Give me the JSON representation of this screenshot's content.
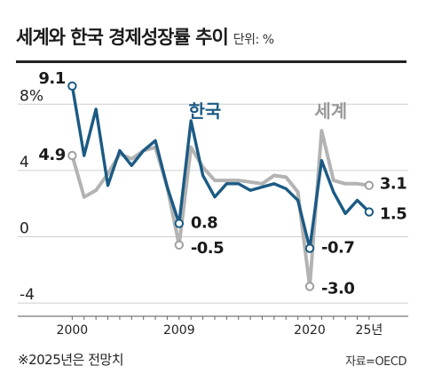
{
  "header": {
    "title": "세계와 한국 경제성장률 추이",
    "unit": "단위: %"
  },
  "footer": {
    "note": "※2025년은 전망치",
    "source": "자료=OECD"
  },
  "colors": {
    "korea": "#1b5a84",
    "world": "#b3b3b3",
    "world_marker": "#a0a0a0",
    "axis_text": "#222222"
  },
  "chart_data": {
    "type": "line",
    "title": "세계와 한국 경제성장률 추이",
    "ylabel": "단위: %",
    "xlabel": "",
    "ylim": [
      -4.8,
      10
    ],
    "xlim": [
      1999,
      2026.8
    ],
    "x": [
      2000,
      2001,
      2002,
      2003,
      2004,
      2005,
      2006,
      2007,
      2008,
      2009,
      2010,
      2011,
      2012,
      2013,
      2014,
      2015,
      2016,
      2017,
      2018,
      2019,
      2020,
      2021,
      2022,
      2023,
      2024,
      2025
    ],
    "x_tick_labels": [
      {
        "x": 2000,
        "label": "2000"
      },
      {
        "x": 2009,
        "label": "2009"
      },
      {
        "x": 2020,
        "label": "2020"
      },
      {
        "x": 2025,
        "label": "25년"
      }
    ],
    "y_ticks": [
      {
        "value": 8,
        "label": "8%"
      },
      {
        "value": 4,
        "label": "4"
      },
      {
        "value": 0,
        "label": "0"
      },
      {
        "value": -4,
        "label": "-4"
      }
    ],
    "series": [
      {
        "name": "한국",
        "values": [
          9.1,
          4.9,
          7.7,
          3.1,
          5.2,
          4.3,
          5.2,
          5.8,
          3.0,
          0.8,
          7.0,
          3.7,
          2.4,
          3.2,
          3.2,
          2.8,
          3.0,
          3.2,
          2.9,
          2.2,
          -0.7,
          4.6,
          2.7,
          1.4,
          2.2,
          1.5
        ]
      },
      {
        "name": "세계",
        "values": [
          4.9,
          2.4,
          2.8,
          3.8,
          5.0,
          4.7,
          5.2,
          5.4,
          3.0,
          -0.5,
          5.4,
          4.2,
          3.4,
          3.4,
          3.4,
          3.3,
          3.2,
          3.7,
          3.6,
          2.7,
          -3.0,
          6.4,
          3.4,
          3.2,
          3.2,
          3.1
        ]
      }
    ],
    "annotations": [
      {
        "series": "한국",
        "x": 2000,
        "label": "9.1"
      },
      {
        "series": "세계",
        "x": 2000,
        "label": "4.9"
      },
      {
        "series": "한국",
        "x": 2009,
        "label": "0.8"
      },
      {
        "series": "세계",
        "x": 2009,
        "label": "-0.5"
      },
      {
        "series": "한국",
        "x": 2020,
        "label": "-0.7"
      },
      {
        "series": "세계",
        "x": 2020,
        "label": "-3.0"
      },
      {
        "series": "세계",
        "x": 2025,
        "label": "3.1"
      },
      {
        "series": "한국",
        "x": 2025,
        "label": "1.5"
      }
    ]
  }
}
